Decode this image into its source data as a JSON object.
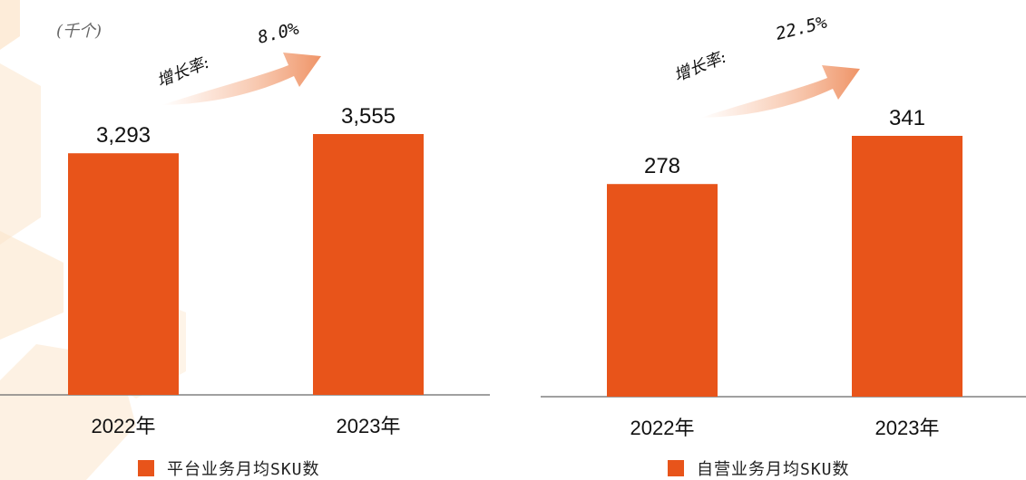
{
  "unit_label": "(千个)",
  "colors": {
    "bar": "#E8541A",
    "axis": "#808080",
    "text": "#111111",
    "bg_shape": "#FCE6CC"
  },
  "chart_data": [
    {
      "type": "bar",
      "categories": [
        "2022年",
        "2023年"
      ],
      "series": [
        {
          "name": "平台业务月均SKU数",
          "values": [
            3293,
            3555
          ]
        }
      ],
      "data_labels": [
        "3,293",
        "3,555"
      ],
      "growth_label": "增长率:",
      "growth_value": "8.0%",
      "legend": "平台业务月均SKU数"
    },
    {
      "type": "bar",
      "categories": [
        "2022年",
        "2023年"
      ],
      "series": [
        {
          "name": "自营业务月均SKU数",
          "values": [
            278,
            341
          ]
        }
      ],
      "data_labels": [
        "278",
        "341"
      ],
      "growth_label": "增长率:",
      "growth_value": "22.5%",
      "legend": "自营业务月均SKU数"
    }
  ]
}
